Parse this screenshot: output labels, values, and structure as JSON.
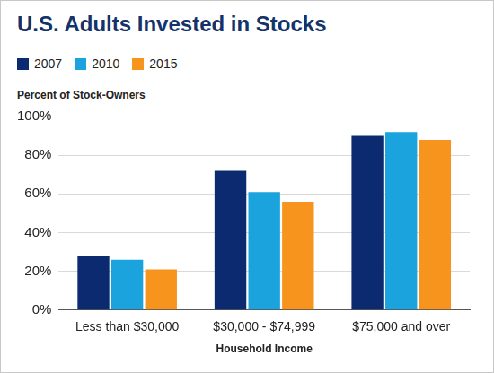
{
  "chart_data": {
    "type": "bar",
    "title": "U.S. Adults Invested in Stocks",
    "ylabel": "Percent of Stock-Owners",
    "xlabel": "Household Income",
    "categories": [
      "Less than $30,000",
      "$30,000 - $74,999",
      "$75,000 and over"
    ],
    "series": [
      {
        "name": "2007",
        "color": "#0b2a6f",
        "values": [
          28,
          72,
          90
        ]
      },
      {
        "name": "2010",
        "color": "#1aa3dc",
        "values": [
          26,
          61,
          92
        ]
      },
      {
        "name": "2015",
        "color": "#f7941e",
        "values": [
          21,
          56,
          88
        ]
      }
    ],
    "ylim": [
      0,
      100
    ],
    "yticks": [
      {
        "value": 0,
        "label": "0%"
      },
      {
        "value": 20,
        "label": "20%"
      },
      {
        "value": 40,
        "label": "40%"
      },
      {
        "value": 60,
        "label": "60%"
      },
      {
        "value": 80,
        "label": "80%"
      },
      {
        "value": 100,
        "label": "100%"
      }
    ],
    "grid": true,
    "legend": "top-left"
  }
}
